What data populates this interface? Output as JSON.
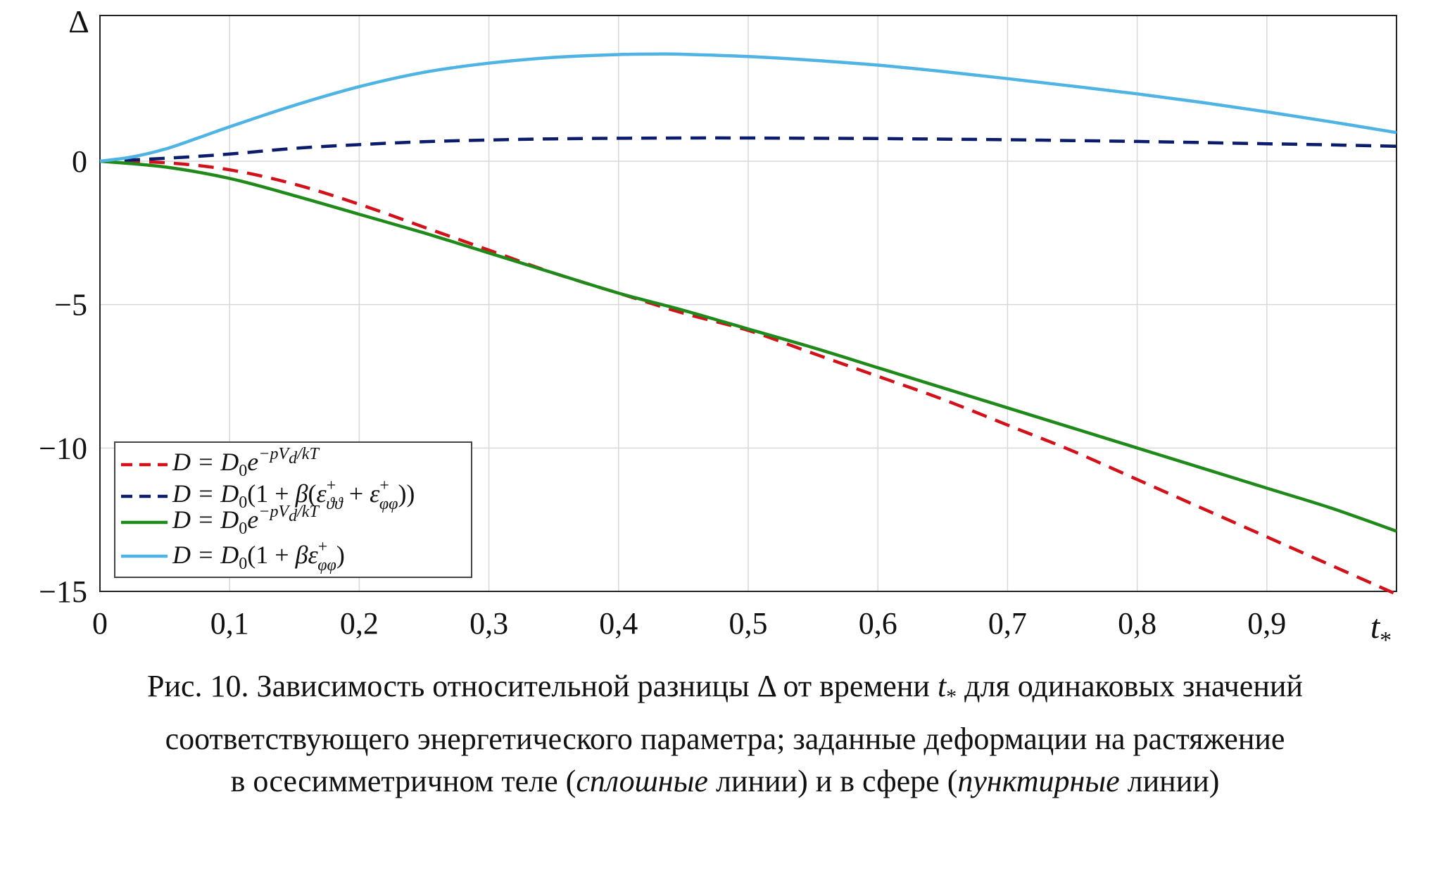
{
  "chart_data": {
    "type": "line",
    "ylabel": "Δ",
    "xlabel": "t*",
    "xlim": [
      0,
      1
    ],
    "ylim": [
      -15,
      5
    ],
    "xticks": [
      0,
      0.1,
      0.2,
      0.3,
      0.4,
      0.5,
      0.6,
      0.7,
      0.8,
      0.9
    ],
    "xtick_labels": [
      "0",
      "0,1",
      "0,2",
      "0,3",
      "0,4",
      "0,5",
      "0,6",
      "0,7",
      "0,8",
      "0,9"
    ],
    "yticks": [
      0,
      -5,
      -10,
      -15
    ],
    "ytick_labels": [
      "0",
      "−5",
      "−10",
      "−15"
    ],
    "grid": true,
    "legend_position": "bottom-left",
    "series": [
      {
        "name": "D = D0e^{−pVd/kT}",
        "color": "#d0121b",
        "dash": "dashed",
        "x": [
          0,
          0.05,
          0.1,
          0.15,
          0.2,
          0.25,
          0.3,
          0.35,
          0.4,
          0.45,
          0.5,
          0.55,
          0.6,
          0.65,
          0.7,
          0.75,
          0.8,
          0.85,
          0.9,
          0.95,
          1.0
        ],
        "y": [
          0,
          -0.05,
          -0.3,
          -0.8,
          -1.5,
          -2.3,
          -3.1,
          -3.9,
          -4.6,
          -5.3,
          -5.9,
          -6.7,
          -7.5,
          -8.3,
          -9.2,
          -10.1,
          -11.1,
          -12.1,
          -13.1,
          -14.1,
          -15.1
        ]
      },
      {
        "name": "D = D0(1 + β(ε+ϑϑ + ε+φφ))",
        "color": "#0b1c6b",
        "dash": "dashed",
        "x": [
          0,
          0.05,
          0.1,
          0.15,
          0.2,
          0.25,
          0.3,
          0.35,
          0.4,
          0.45,
          0.5,
          0.55,
          0.6,
          0.65,
          0.7,
          0.75,
          0.8,
          0.85,
          0.9,
          0.95,
          1.0
        ],
        "y": [
          0,
          0.1,
          0.25,
          0.45,
          0.58,
          0.68,
          0.74,
          0.78,
          0.8,
          0.81,
          0.81,
          0.8,
          0.79,
          0.77,
          0.75,
          0.72,
          0.69,
          0.65,
          0.61,
          0.57,
          0.52
        ]
      },
      {
        "name": "D = D0e^{−pVd/kT}",
        "color": "#1f8a1a",
        "dash": "solid",
        "x": [
          0,
          0.05,
          0.1,
          0.15,
          0.2,
          0.25,
          0.3,
          0.35,
          0.4,
          0.45,
          0.5,
          0.55,
          0.6,
          0.65,
          0.7,
          0.75,
          0.8,
          0.85,
          0.9,
          0.95,
          1.0
        ],
        "y": [
          0,
          -0.2,
          -0.6,
          -1.2,
          -1.85,
          -2.5,
          -3.2,
          -3.9,
          -4.6,
          -5.2,
          -5.85,
          -6.5,
          -7.2,
          -7.9,
          -8.6,
          -9.3,
          -10.0,
          -10.7,
          -11.4,
          -12.1,
          -12.9
        ]
      },
      {
        "name": "D = D0(1 + βε+φφ)",
        "color": "#4fb3e3",
        "dash": "solid",
        "x": [
          0,
          0.025,
          0.05,
          0.075,
          0.1,
          0.15,
          0.2,
          0.25,
          0.3,
          0.35,
          0.4,
          0.43,
          0.45,
          0.5,
          0.55,
          0.6,
          0.65,
          0.7,
          0.75,
          0.8,
          0.85,
          0.9,
          0.95,
          1.0
        ],
        "y": [
          0,
          0.15,
          0.42,
          0.8,
          1.2,
          1.95,
          2.6,
          3.1,
          3.42,
          3.62,
          3.72,
          3.74,
          3.73,
          3.65,
          3.52,
          3.35,
          3.13,
          2.88,
          2.62,
          2.35,
          2.05,
          1.72,
          1.37,
          1.0
        ]
      }
    ]
  },
  "caption": {
    "line1_prefix": "Рис. 10. Зависимость относительной разницы Δ от времени ",
    "line1_var": "t",
    "line1_sub": "*",
    "line1_suffix": " для одинаковых значений",
    "line2": "соответствующего энергетического параметра; заданные деформации на растяжение",
    "line3_a": "в осесимметричном теле (",
    "line3_b": "сплошные",
    "line3_c": " линии) и в сфере (",
    "line3_d": "пунктирные",
    "line3_e": " линии)"
  }
}
